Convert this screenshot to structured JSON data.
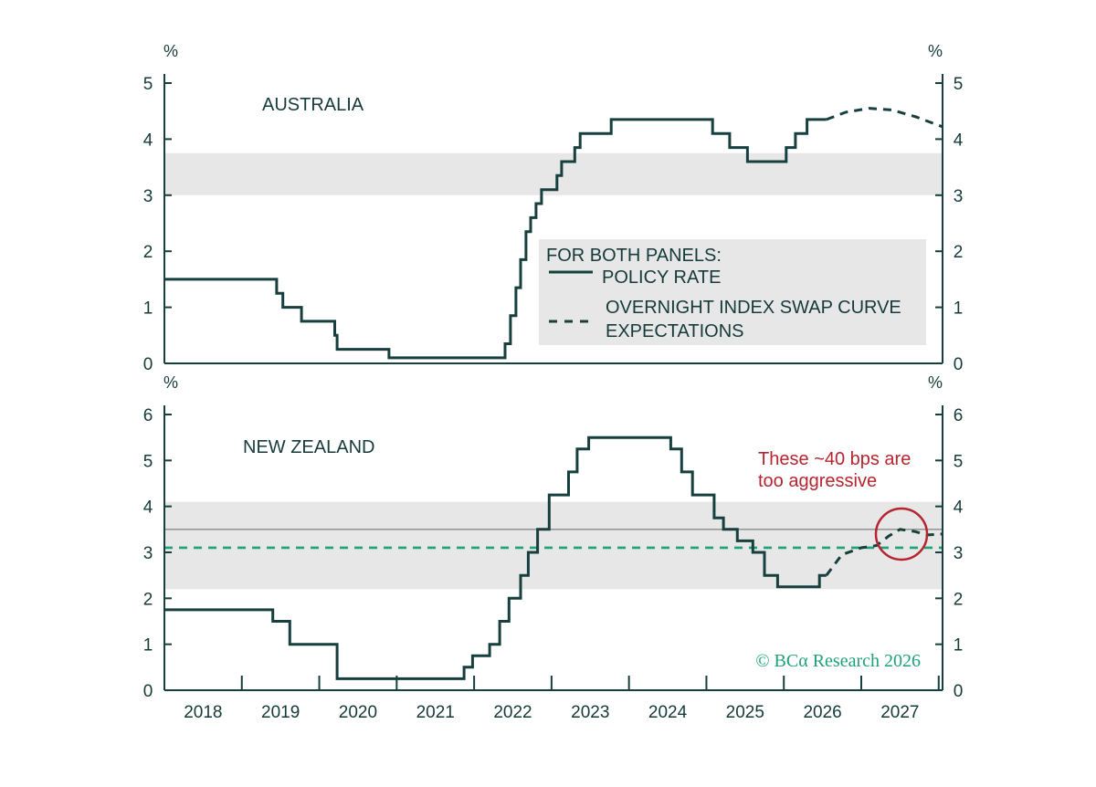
{
  "colors": {
    "policy_line": "#163f3e",
    "ois_line": "#163f3e",
    "band": "#e7e7e7",
    "axis": "#163f3e",
    "green_ref": "#1fa17a",
    "gray_ref": "#8a8a8a",
    "annotation": "#b5252f",
    "legend_bg": "#e7e7e7"
  },
  "legend": {
    "header": "FOR BOTH PANELS:",
    "policy_label": "POLICY RATE",
    "ois_label_line1": "OVERNIGHT INDEX SWAP CURVE",
    "ois_label_line2": "EXPECTATIONS"
  },
  "annotation": {
    "line1": "These ~40 bps are",
    "line2": "too aggressive"
  },
  "copyright": "© BCα Research 2026",
  "chart_data": [
    {
      "type": "line",
      "title": "AUSTRALIA",
      "y_unit": "%",
      "ylim": [
        0,
        5
      ],
      "yticks": [
        0,
        1,
        2,
        3,
        4,
        5
      ],
      "xlim": [
        2017.5,
        2027.55
      ],
      "band": [
        3.0,
        3.75
      ],
      "series": [
        {
          "name": "POLICY RATE",
          "style": "solid",
          "step": true,
          "points": [
            [
              2017.5,
              1.5
            ],
            [
              2018.95,
              1.5
            ],
            [
              2018.95,
              1.25
            ],
            [
              2019.03,
              1.25
            ],
            [
              2019.03,
              1.0
            ],
            [
              2019.27,
              1.0
            ],
            [
              2019.27,
              0.75
            ],
            [
              2019.7,
              0.75
            ],
            [
              2019.7,
              0.5
            ],
            [
              2019.73,
              0.5
            ],
            [
              2019.73,
              0.25
            ],
            [
              2020.4,
              0.25
            ],
            [
              2020.4,
              0.1
            ],
            [
              2021.9,
              0.1
            ],
            [
              2021.9,
              0.35
            ],
            [
              2021.97,
              0.35
            ],
            [
              2021.97,
              0.85
            ],
            [
              2022.04,
              0.85
            ],
            [
              2022.04,
              1.35
            ],
            [
              2022.1,
              1.35
            ],
            [
              2022.1,
              1.85
            ],
            [
              2022.17,
              1.85
            ],
            [
              2022.17,
              2.35
            ],
            [
              2022.23,
              2.35
            ],
            [
              2022.23,
              2.6
            ],
            [
              2022.3,
              2.6
            ],
            [
              2022.3,
              2.85
            ],
            [
              2022.37,
              2.85
            ],
            [
              2022.37,
              3.1
            ],
            [
              2022.57,
              3.1
            ],
            [
              2022.57,
              3.35
            ],
            [
              2022.63,
              3.35
            ],
            [
              2022.63,
              3.6
            ],
            [
              2022.8,
              3.6
            ],
            [
              2022.8,
              3.85
            ],
            [
              2022.87,
              3.85
            ],
            [
              2022.87,
              4.1
            ],
            [
              2023.27,
              4.1
            ],
            [
              2023.27,
              4.35
            ],
            [
              2024.58,
              4.35
            ],
            [
              2024.58,
              4.1
            ],
            [
              2024.8,
              4.1
            ],
            [
              2024.8,
              3.85
            ],
            [
              2025.03,
              3.85
            ],
            [
              2025.03,
              3.6
            ],
            [
              2025.53,
              3.6
            ],
            [
              2025.53,
              3.85
            ],
            [
              2025.65,
              3.85
            ],
            [
              2025.65,
              4.1
            ],
            [
              2025.8,
              4.1
            ],
            [
              2025.8,
              4.35
            ],
            [
              2026.05,
              4.35
            ]
          ]
        },
        {
          "name": "OVERNIGHT INDEX SWAP CURVE EXPECTATIONS",
          "style": "dashed",
          "step": false,
          "points": [
            [
              2026.05,
              4.35
            ],
            [
              2026.3,
              4.48
            ],
            [
              2026.6,
              4.55
            ],
            [
              2026.9,
              4.52
            ],
            [
              2027.2,
              4.4
            ],
            [
              2027.55,
              4.22
            ]
          ]
        }
      ]
    },
    {
      "type": "line",
      "title": "NEW ZEALAND",
      "y_unit": "%",
      "ylim": [
        0,
        6
      ],
      "yticks": [
        0,
        1,
        2,
        3,
        4,
        5,
        6
      ],
      "xlim": [
        2017.5,
        2027.55
      ],
      "band": [
        2.2,
        4.1
      ],
      "reference_lines": [
        {
          "value": 3.5,
          "style": "solid",
          "color": "gray"
        },
        {
          "value": 3.1,
          "style": "dashed",
          "color": "green"
        }
      ],
      "series": [
        {
          "name": "POLICY RATE",
          "style": "solid",
          "step": true,
          "points": [
            [
              2017.5,
              1.75
            ],
            [
              2018.9,
              1.75
            ],
            [
              2018.9,
              1.5
            ],
            [
              2019.12,
              1.5
            ],
            [
              2019.12,
              1.0
            ],
            [
              2019.73,
              1.0
            ],
            [
              2019.73,
              0.25
            ],
            [
              2021.37,
              0.25
            ],
            [
              2021.37,
              0.5
            ],
            [
              2021.48,
              0.5
            ],
            [
              2021.48,
              0.75
            ],
            [
              2021.7,
              0.75
            ],
            [
              2021.7,
              1.0
            ],
            [
              2021.83,
              1.0
            ],
            [
              2021.83,
              1.5
            ],
            [
              2021.95,
              1.5
            ],
            [
              2021.95,
              2.0
            ],
            [
              2022.1,
              2.0
            ],
            [
              2022.1,
              2.5
            ],
            [
              2022.2,
              2.5
            ],
            [
              2022.2,
              3.0
            ],
            [
              2022.32,
              3.0
            ],
            [
              2022.32,
              3.5
            ],
            [
              2022.47,
              3.5
            ],
            [
              2022.47,
              4.25
            ],
            [
              2022.72,
              4.25
            ],
            [
              2022.72,
              4.75
            ],
            [
              2022.83,
              4.75
            ],
            [
              2022.83,
              5.25
            ],
            [
              2022.98,
              5.25
            ],
            [
              2022.98,
              5.5
            ],
            [
              2024.04,
              5.5
            ],
            [
              2024.04,
              5.25
            ],
            [
              2024.18,
              5.25
            ],
            [
              2024.18,
              4.75
            ],
            [
              2024.32,
              4.75
            ],
            [
              2024.32,
              4.25
            ],
            [
              2024.6,
              4.25
            ],
            [
              2024.6,
              3.75
            ],
            [
              2024.72,
              3.75
            ],
            [
              2024.72,
              3.5
            ],
            [
              2024.9,
              3.5
            ],
            [
              2024.9,
              3.25
            ],
            [
              2025.1,
              3.25
            ],
            [
              2025.1,
              3.0
            ],
            [
              2025.25,
              3.0
            ],
            [
              2025.25,
              2.5
            ],
            [
              2025.42,
              2.5
            ],
            [
              2025.42,
              2.25
            ],
            [
              2025.96,
              2.25
            ],
            [
              2025.96,
              2.5
            ],
            [
              2026.05,
              2.5
            ]
          ]
        },
        {
          "name": "OVERNIGHT INDEX SWAP CURVE EXPECTATIONS",
          "style": "dashed",
          "step": false,
          "points": [
            [
              2026.05,
              2.5
            ],
            [
              2026.25,
              2.95
            ],
            [
              2026.5,
              3.1
            ],
            [
              2026.7,
              3.15
            ],
            [
              2026.85,
              3.35
            ],
            [
              2027.0,
              3.5
            ],
            [
              2027.2,
              3.45
            ],
            [
              2027.35,
              3.38
            ],
            [
              2027.55,
              3.4
            ]
          ]
        }
      ]
    }
  ],
  "x_axis": {
    "years": [
      "2018",
      "2019",
      "2020",
      "2021",
      "2022",
      "2023",
      "2024",
      "2025",
      "2026",
      "2027"
    ],
    "year_values": [
      2018,
      2019,
      2020,
      2021,
      2022,
      2023,
      2024,
      2025,
      2026,
      2027
    ]
  }
}
